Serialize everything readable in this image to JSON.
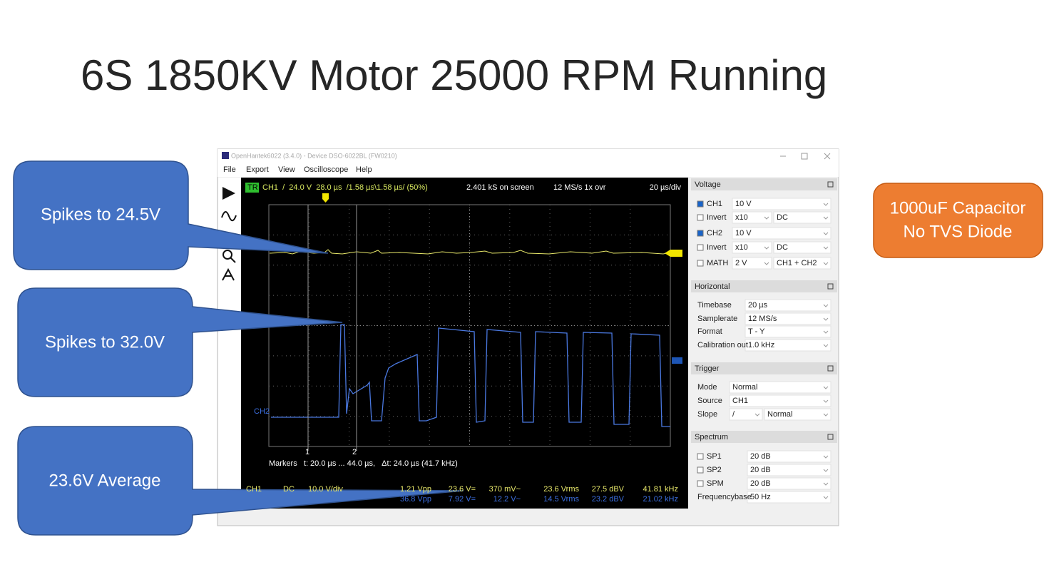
{
  "slide": {
    "title": "6S 1850KV Motor 25000 RPM Running",
    "callouts": [
      "Spikes to 24.5V",
      "Spikes to 32.0V",
      "23.6V Average"
    ],
    "note": [
      "1000uF Capacitor",
      "No TVS Diode"
    ]
  },
  "window": {
    "title": "OpenHantek6022 (3.4.0) - Device DSO-6022BL (FW0210)",
    "menu": [
      "File",
      "Export",
      "View",
      "Oscilloscope",
      "Help"
    ],
    "scope": {
      "trigger_badge": "TR",
      "status": "CH1  /  24.0 V  28.0 µs  /1.58 µs\\1.58 µs/ (50%)",
      "samples": "2.401 kS on screen",
      "rate": "12 MS/s 1x ovr",
      "timebase": "20 µs/div",
      "ch2_label": "CH2",
      "marker_labels": [
        "1",
        "2"
      ],
      "markers_info": "Markers   t: 20.0 µs ... 44.0 µs,   Δt: 24.0 µs (41.7 kHz)",
      "ch1_row": [
        "CH1",
        "DC",
        "10.0 V/div",
        "1.21 Vpp",
        "23.6 V=",
        "370 mV~",
        "23.6 Vrms",
        "27.5 dBV",
        "41.81 kHz"
      ],
      "ch2_row": [
        "36.8 Vpp",
        "7.92 V=",
        "12.2 V~",
        "14.5 Vrms",
        "23.2 dBV",
        "21.02 kHz"
      ]
    },
    "panel": [
      {
        "title": "Voltage",
        "rows": [
          {
            "label": "CH1",
            "checked": true,
            "fields": [
              "10 V"
            ]
          },
          {
            "label": "Invert",
            "checked": false,
            "fields": [
              "x10",
              "DC"
            ]
          },
          {
            "label": "CH2",
            "checked": true,
            "fields": [
              "10 V"
            ]
          },
          {
            "label": "Invert",
            "checked": false,
            "fields": [
              "x10",
              "DC"
            ]
          },
          {
            "label": "MATH",
            "checked": false,
            "fields": [
              "2 V",
              "CH1 + CH2"
            ]
          }
        ]
      },
      {
        "title": "Horizontal",
        "rows": [
          {
            "label": "Timebase",
            "fields": [
              "20 µs"
            ]
          },
          {
            "label": "Samplerate",
            "fields": [
              "12 MS/s"
            ]
          },
          {
            "label": "Format",
            "fields": [
              "T - Y"
            ]
          },
          {
            "label": "Calibration out",
            "fields": [
              "1.0 kHz"
            ]
          }
        ]
      },
      {
        "title": "Trigger",
        "rows": [
          {
            "label": "Mode",
            "fields": [
              "Normal"
            ]
          },
          {
            "label": "Source",
            "fields": [
              "CH1"
            ]
          },
          {
            "label": "Slope",
            "fields": [
              "/",
              "Normal"
            ]
          }
        ]
      },
      {
        "title": "Spectrum",
        "rows": [
          {
            "label": "SP1",
            "checked": false,
            "fields": [
              "20 dB"
            ]
          },
          {
            "label": "SP2",
            "checked": false,
            "fields": [
              "20 dB"
            ]
          },
          {
            "label": "SPM",
            "checked": false,
            "fields": [
              "20 dB"
            ]
          },
          {
            "label": "Frequencybase",
            "fields": [
              "50 Hz"
            ]
          }
        ]
      }
    ]
  }
}
